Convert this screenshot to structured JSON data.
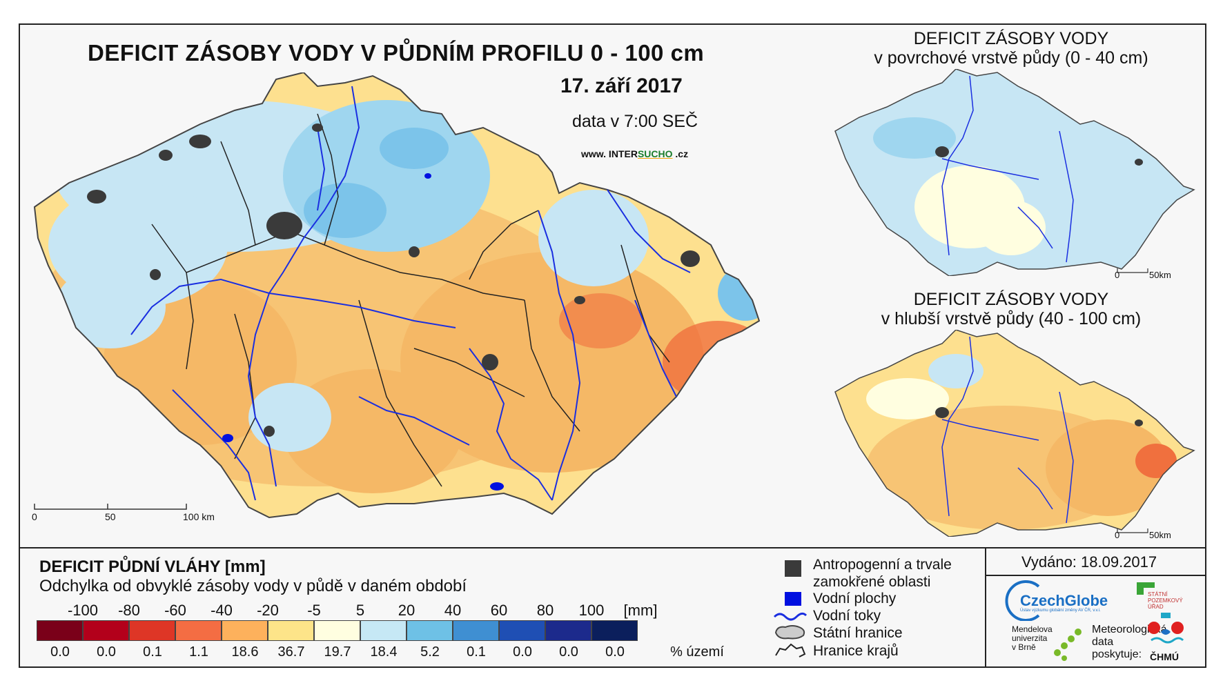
{
  "main": {
    "title": "DEFICIT ZÁSOBY VODY V PŮDNÍM PROFILU 0 - 100 cm",
    "date": "17. září 2017",
    "data_time": "data v 7:00 SEČ",
    "website_prefix": "www. INTER",
    "website_brand": "SUCHO",
    "website_suffix": " .cz",
    "scale": {
      "labels": [
        "0",
        "50",
        "100 km"
      ]
    }
  },
  "inset_top": {
    "title_line1": "DEFICIT ZÁSOBY VODY",
    "title_line2": "v povrchové vrstvě půdy (0 - 40 cm)",
    "scale": {
      "labels": [
        "0",
        "50km"
      ]
    }
  },
  "inset_bottom": {
    "title_line1": "DEFICIT ZÁSOBY VODY",
    "title_line2": "v hlubší vrstvě půdy (40 - 100 cm)",
    "scale": {
      "labels": [
        "0",
        "50km"
      ]
    }
  },
  "legend": {
    "title": "DEFICIT PŮDNÍ VLÁHY [mm]",
    "subtitle": "Odchylka od obvyklé zásoby vody v půdě v daném období",
    "ticks": [
      "-100",
      "-80",
      "-60",
      "-40",
      "-20",
      "-5",
      "5",
      "20",
      "40",
      "60",
      "80",
      "100"
    ],
    "unit": "[mm]",
    "classes": [
      {
        "color": "#7a0019",
        "percent": "0.0"
      },
      {
        "color": "#b3001b",
        "percent": "0.0"
      },
      {
        "color": "#de3626",
        "percent": "0.1"
      },
      {
        "color": "#f46d43",
        "percent": "1.1"
      },
      {
        "color": "#fdb15c",
        "percent": "18.6"
      },
      {
        "color": "#fde489",
        "percent": "36.7"
      },
      {
        "color": "#fffee0",
        "percent": "19.7"
      },
      {
        "color": "#c6e8f5",
        "percent": "18.4"
      },
      {
        "color": "#6ec1e6",
        "percent": "5.2"
      },
      {
        "color": "#3f8fd2",
        "percent": "0.1"
      },
      {
        "color": "#1f4fb4",
        "percent": "0.0"
      },
      {
        "color": "#1c2a8c",
        "percent": "0.0"
      },
      {
        "color": "#0b1f5c",
        "percent": "0.0"
      }
    ],
    "percent_unit": "% území"
  },
  "symbols": {
    "anthropogenic_line1": "Antropogenní a trvale",
    "anthropogenic_line2": "zamokřené oblasti",
    "water_bodies": "Vodní plochy",
    "rivers": "Vodní toky",
    "state_border": "Státní hranice",
    "region_border": "Hranice krajů"
  },
  "issued": "Vydáno: 18.09.2017",
  "logos": {
    "czechglobe": "CzechGlobe",
    "czechglobe_sub": "Ústav výzkumu globální změny AV ČR, v.v.i.",
    "spu_line1": "STÁTNÍ",
    "spu_line2": "POZEMKOVÝ",
    "spu_line3": "ÚŘAD",
    "mendel_line1": "Mendelova",
    "mendel_line2": "univerzita",
    "mendel_line3": "v Brně",
    "met_line1": "Meteorologická",
    "met_line2": "data",
    "met_line3": "poskytuje:",
    "chmu": "ČHMÚ"
  },
  "colors": {
    "orange_dry": "#f5b866",
    "yellow_dry": "#fde08f",
    "light_blue_wet": "#c7e6f4",
    "blue_wet": "#7cc4ea",
    "red_dry": "#f0703e",
    "urban": "#3a3a3a",
    "river": "#1a2ee0"
  }
}
